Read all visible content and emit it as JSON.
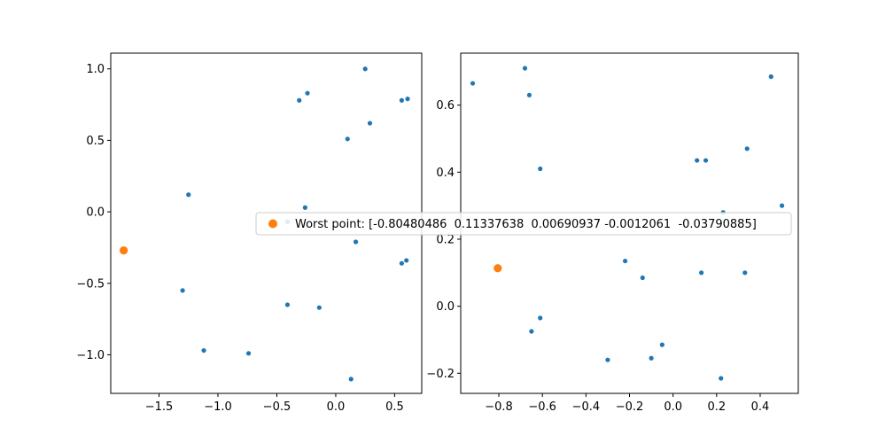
{
  "chart_data": [
    {
      "type": "scatter",
      "xlim": [
        -1.91,
        0.73
      ],
      "ylim": [
        -1.27,
        1.11
      ],
      "xticks": [
        -1.5,
        -1.0,
        -0.5,
        0.0,
        0.5
      ],
      "xtick_labels": [
        "−1.5",
        "−1.0",
        "−0.5",
        "0.0",
        "0.5"
      ],
      "yticks": [
        -1.0,
        -0.5,
        0.0,
        0.5,
        1.0
      ],
      "ytick_labels": [
        "−1.0",
        "−0.5",
        "0.0",
        "0.5",
        "1.0"
      ],
      "colors": {
        "points": "#1f77b4",
        "worst": "#ff7f0e"
      },
      "points": [
        [
          0.25,
          1.0
        ],
        [
          -0.31,
          0.78
        ],
        [
          -0.24,
          0.83
        ],
        [
          0.56,
          0.78
        ],
        [
          0.61,
          0.79
        ],
        [
          0.29,
          0.62
        ],
        [
          0.1,
          0.51
        ],
        [
          -1.25,
          0.12
        ],
        [
          -0.26,
          0.03
        ],
        [
          -0.41,
          -0.07
        ],
        [
          0.17,
          -0.21
        ],
        [
          0.56,
          -0.36
        ],
        [
          0.6,
          -0.34
        ],
        [
          -1.3,
          -0.55
        ],
        [
          -0.41,
          -0.65
        ],
        [
          -0.14,
          -0.67
        ],
        [
          -1.12,
          -0.97
        ],
        [
          -0.74,
          -0.99
        ],
        [
          0.13,
          -1.17
        ]
      ],
      "worst_point": [
        -1.8,
        -0.27
      ]
    },
    {
      "type": "scatter",
      "xlim": [
        -0.975,
        0.575
      ],
      "ylim": [
        -0.26,
        0.755
      ],
      "xticks": [
        -0.8,
        -0.6,
        -0.4,
        -0.2,
        0.0,
        0.2,
        0.4
      ],
      "xtick_labels": [
        "−0.8",
        "−0.6",
        "−0.4",
        "−0.2",
        "0.0",
        "0.2",
        "0.4"
      ],
      "yticks": [
        -0.2,
        0.0,
        0.2,
        0.4,
        0.6
      ],
      "ytick_labels": [
        "−0.2",
        "0.0",
        "0.2",
        "0.4",
        "0.6"
      ],
      "colors": {
        "points": "#1f77b4",
        "worst": "#ff7f0e"
      },
      "points": [
        [
          -0.92,
          0.665
        ],
        [
          -0.68,
          0.71
        ],
        [
          -0.66,
          0.63
        ],
        [
          0.45,
          0.685
        ],
        [
          -0.61,
          0.41
        ],
        [
          0.11,
          0.435
        ],
        [
          0.15,
          0.435
        ],
        [
          0.34,
          0.47
        ],
        [
          0.23,
          0.28
        ],
        [
          0.5,
          0.3
        ],
        [
          -0.22,
          0.135
        ],
        [
          -0.14,
          0.085
        ],
        [
          0.13,
          0.1
        ],
        [
          0.33,
          0.1
        ],
        [
          -0.61,
          -0.035
        ],
        [
          -0.65,
          -0.075
        ],
        [
          -0.05,
          -0.115
        ],
        [
          -0.1,
          -0.155
        ],
        [
          -0.3,
          -0.16
        ],
        [
          0.22,
          -0.215
        ]
      ],
      "worst_point": [
        -0.80480486,
        0.11337638
      ]
    }
  ],
  "legend": {
    "label": "Worst point: [-0.80480486  0.11337638  0.00690937 -0.0012061  -0.03790885]",
    "marker_color": "#ff7f0e",
    "placement": "center"
  }
}
